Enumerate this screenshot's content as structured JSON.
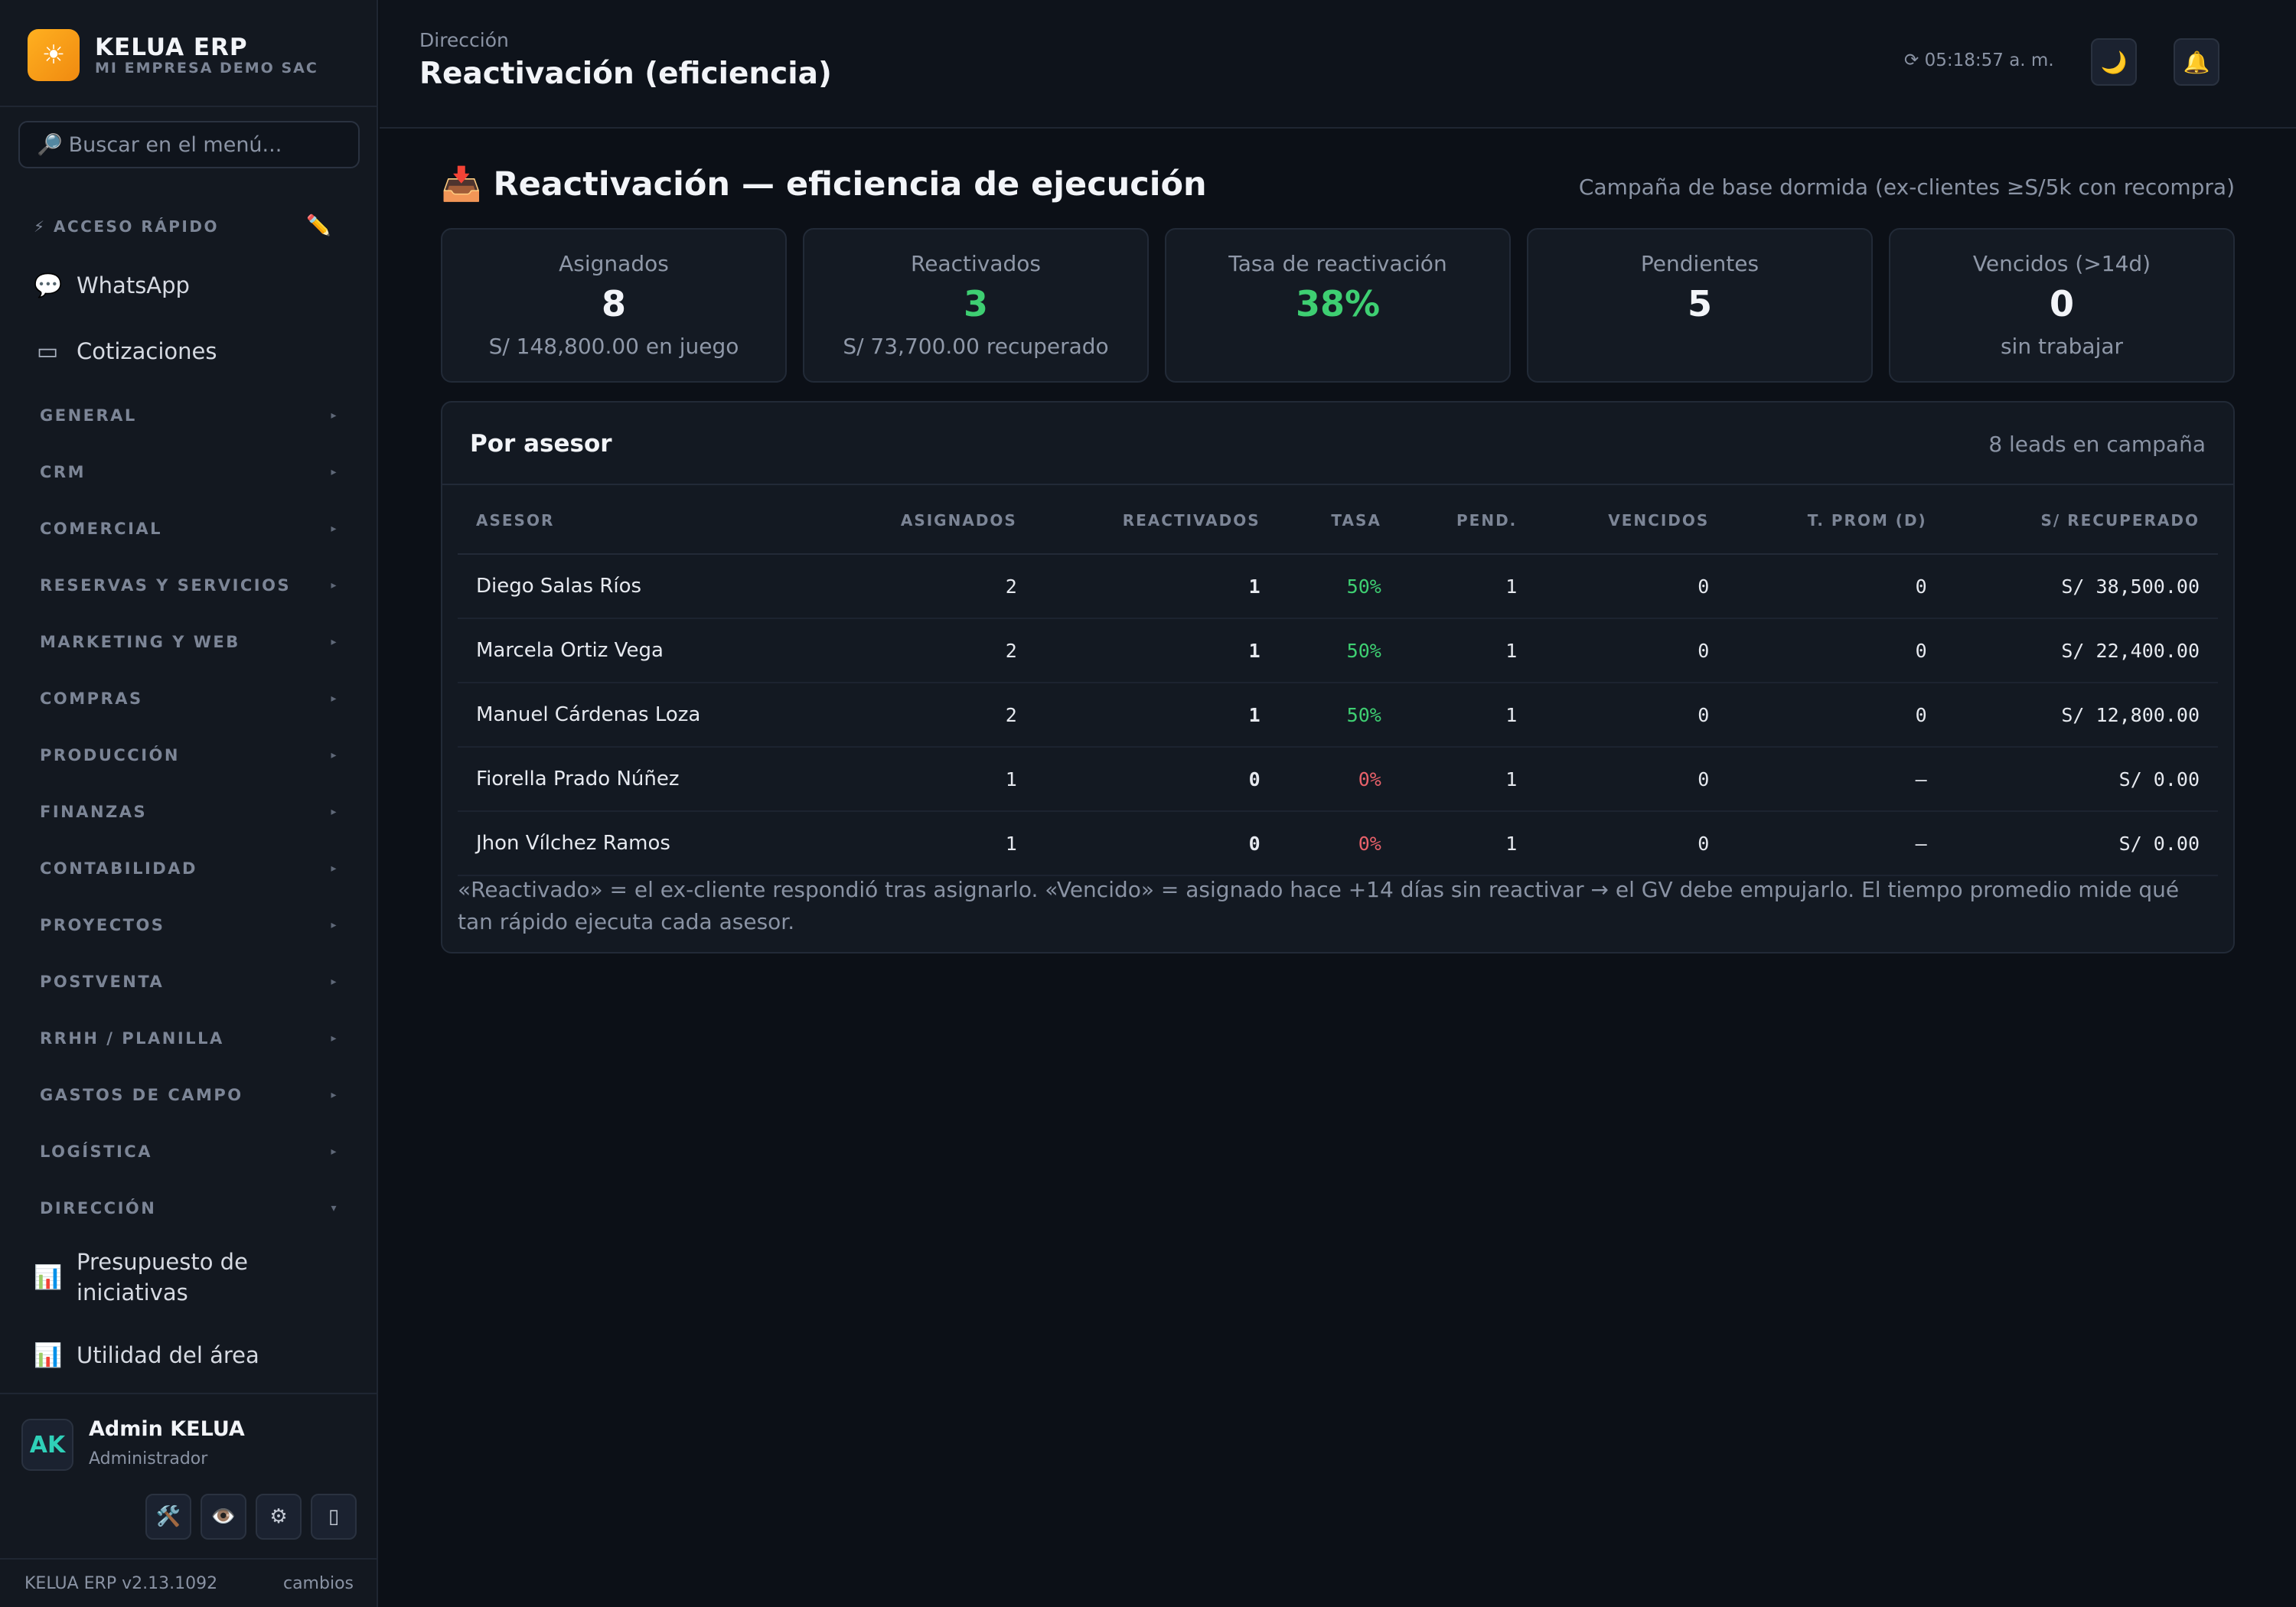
{
  "colors": {
    "accent": "#f5a623",
    "positive": "#3ecf72",
    "negative": "#e8616a",
    "teal": "#2fd0b8"
  },
  "brand": {
    "logo_icon": "sun-icon",
    "logo_glyph": "☀",
    "name": "KELUA ERP",
    "company": "MI EMPRESA DEMO SAC"
  },
  "sidebar": {
    "search_placeholder": "Buscar en el menú...",
    "search_glyph": "🔎",
    "quick_access_title": "⚡ ACCESO RÁPIDO",
    "edit_glyph": "✏️",
    "quick_links": [
      {
        "icon": "chat-icon",
        "glyph": "💬",
        "label": "WhatsApp"
      },
      {
        "icon": "document-icon",
        "glyph": "▭",
        "label": "Cotizaciones"
      }
    ],
    "sections": [
      {
        "label": "GENERAL",
        "chevron": "▸"
      },
      {
        "label": "CRM",
        "chevron": "▸"
      },
      {
        "label": "COMERCIAL",
        "chevron": "▸"
      },
      {
        "label": "RESERVAS Y SERVICIOS",
        "chevron": "▸"
      },
      {
        "label": "MARKETING Y WEB",
        "chevron": "▸"
      },
      {
        "label": "COMPRAS",
        "chevron": "▸"
      },
      {
        "label": "PRODUCCIÓN",
        "chevron": "▸"
      },
      {
        "label": "FINANZAS",
        "chevron": "▸"
      },
      {
        "label": "CONTABILIDAD",
        "chevron": "▸"
      },
      {
        "label": "PROYECTOS",
        "chevron": "▸"
      },
      {
        "label": "POSTVENTA",
        "chevron": "▸"
      },
      {
        "label": "RRHH / PLANILLA",
        "chevron": "▸"
      },
      {
        "label": "GASTOS DE CAMPO",
        "chevron": "▸"
      },
      {
        "label": "LOGÍSTICA",
        "chevron": "▸"
      },
      {
        "label": "DIRECCIÓN",
        "chevron": "▾"
      }
    ],
    "direccion_items": [
      {
        "icon": "bar-chart-icon",
        "glyph": "📊",
        "label": "Presupuesto de iniciativas"
      },
      {
        "icon": "bar-chart-icon",
        "glyph": "📊",
        "label": "Utilidad del área"
      }
    ],
    "user": {
      "initials": "AK",
      "name": "Admin KELUA",
      "role": "Administrador"
    },
    "tools": [
      {
        "icon": "tools-icon",
        "glyph": "🛠️"
      },
      {
        "icon": "eye-icon",
        "glyph": "👁️"
      },
      {
        "icon": "gear-icon",
        "glyph": "⚙"
      },
      {
        "icon": "panel-icon",
        "glyph": "▯"
      }
    ],
    "version": "KELUA ERP v2.13.1092",
    "changes_link": "cambios"
  },
  "header": {
    "breadcrumb": "Dirección",
    "title": "Reactivación (eficiencia)",
    "clock": "⟳ 05:18:57 a. m.",
    "theme_glyph": "🌙",
    "bell_glyph": "🔔"
  },
  "main": {
    "title": "📥 Reactivación — eficiencia de ejecución",
    "subtitle": "Campaña de base dormida (ex-clientes ≥S/5k con recompra)",
    "kpis": [
      {
        "label": "Asignados",
        "value": "8",
        "note": "S/ 148,800.00 en juego",
        "tone": "default"
      },
      {
        "label": "Reactivados",
        "value": "3",
        "note": "S/ 73,700.00 recuperado",
        "tone": "green"
      },
      {
        "label": "Tasa de reactivación",
        "value": "38%",
        "note": "",
        "tone": "green"
      },
      {
        "label": "Pendientes",
        "value": "5",
        "note": "",
        "tone": "default"
      },
      {
        "label": "Vencidos (>14d)",
        "value": "0",
        "note": "sin trabajar",
        "tone": "default"
      }
    ],
    "panel": {
      "title": "Por asesor",
      "count": "8 leads en campaña",
      "columns": [
        "ASESOR",
        "ASIGNADOS",
        "REACTIVADOS",
        "TASA",
        "PEND.",
        "VENCIDOS",
        "T. PROM (D)",
        "S/ RECUPERADO"
      ],
      "rows": [
        [
          "Diego Salas Ríos",
          "2",
          "1",
          "50%",
          "1",
          "0",
          "0",
          "S/ 38,500.00"
        ],
        [
          "Marcela Ortiz Vega",
          "2",
          "1",
          "50%",
          "1",
          "0",
          "0",
          "S/ 22,400.00"
        ],
        [
          "Manuel Cárdenas Loza",
          "2",
          "1",
          "50%",
          "1",
          "0",
          "0",
          "S/ 12,800.00"
        ],
        [
          "Fiorella Prado Núñez",
          "1",
          "0",
          "0%",
          "1",
          "0",
          "—",
          "S/ 0.00"
        ],
        [
          "Jhon Vílchez Ramos",
          "1",
          "0",
          "0%",
          "1",
          "0",
          "—",
          "S/ 0.00"
        ]
      ],
      "note": "«Reactivado» = el ex-cliente respondió tras asignarlo. «Vencido» = asignado hace +14 días sin reactivar → el GV debe empujarlo. El tiempo promedio mide qué tan rápido ejecuta cada asesor."
    }
  }
}
